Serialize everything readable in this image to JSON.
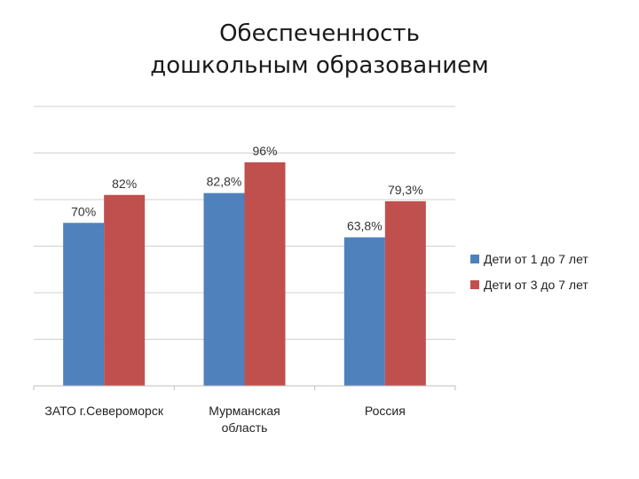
{
  "title_lines": [
    "Обеспеченность",
    "дошкольным образованием"
  ],
  "chart_data": {
    "type": "bar",
    "title": "Обеспеченность дошкольным образованием",
    "categories": [
      [
        "ЗАТО г.Североморск"
      ],
      [
        "Мурманская",
        "область"
      ],
      [
        "Россия"
      ]
    ],
    "series": [
      {
        "name": "Дети от 1 до 7 лет",
        "color": "#4f81bd",
        "values": [
          70,
          82.8,
          63.8
        ],
        "labels": [
          "70%",
          "82,8%",
          "63,8%"
        ]
      },
      {
        "name": "Дети от 3 до 7 лет",
        "color": "#c0504d",
        "values": [
          82,
          96,
          79.3
        ],
        "labels": [
          "82%",
          "96%",
          "79,3%"
        ]
      }
    ],
    "ylim": [
      0,
      120
    ],
    "grid": true,
    "legend_position": "right",
    "xlabel": "",
    "ylabel": ""
  }
}
